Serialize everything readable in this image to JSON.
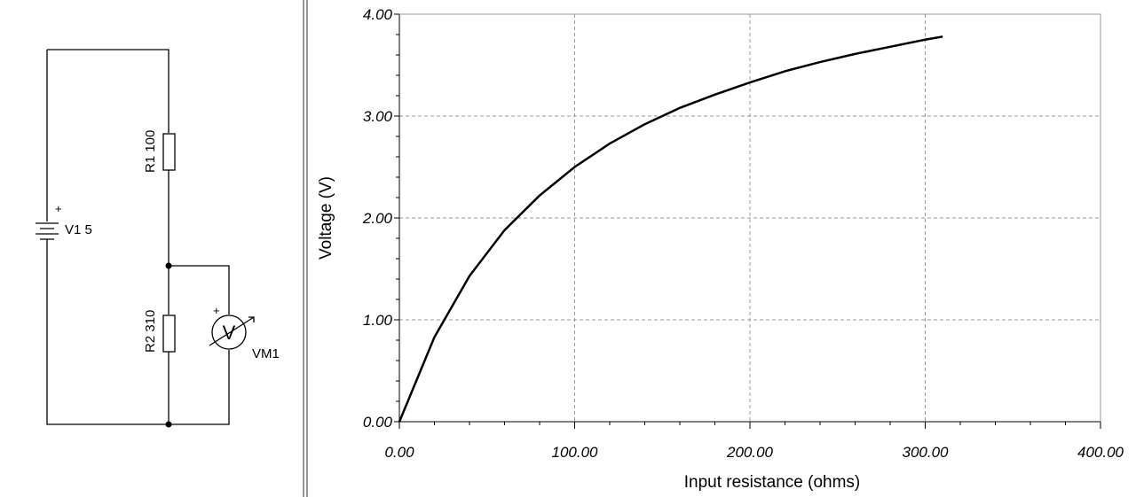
{
  "schematic": {
    "components": [
      {
        "label": "V1 5",
        "polarity": "+"
      },
      {
        "label": "R1 100"
      },
      {
        "label": "R2 310"
      },
      {
        "label": "VM1",
        "symbol": "V",
        "polarity": "+"
      }
    ]
  },
  "chart_data": {
    "type": "line",
    "x_label": "Input resistance (ohms)",
    "y_label": "Voltage (V)",
    "x": [
      0,
      20,
      40,
      60,
      80,
      100,
      120,
      140,
      160,
      180,
      200,
      220,
      240,
      260,
      280,
      300,
      310
    ],
    "series": [
      {
        "color": "#000000",
        "values": [
          0,
          0.83,
          1.43,
          1.88,
          2.22,
          2.5,
          2.73,
          2.92,
          3.08,
          3.21,
          3.33,
          3.44,
          3.53,
          3.61,
          3.68,
          3.75,
          3.78
        ]
      }
    ],
    "xlim": [
      0,
      400
    ],
    "ylim": [
      0,
      4
    ],
    "xticks": [
      {
        "value": 0,
        "label": "0.00"
      },
      {
        "value": 100,
        "label": "100.00"
      },
      {
        "value": 200,
        "label": "200.00"
      },
      {
        "value": 300,
        "label": "300.00"
      },
      {
        "value": 400,
        "label": "400.00"
      }
    ],
    "yticks": [
      {
        "value": 0,
        "label": "0.00"
      },
      {
        "value": 1,
        "label": "1.00"
      },
      {
        "value": 2,
        "label": "2.00"
      },
      {
        "value": 3,
        "label": "3.00"
      },
      {
        "value": 4,
        "label": "4.00"
      }
    ],
    "xminor": [
      20,
      40,
      60,
      80,
      120,
      140,
      160,
      180,
      220,
      240,
      260,
      280,
      320,
      340,
      360,
      380
    ],
    "yminor": [
      0.2,
      0.4,
      0.6,
      0.8,
      1.2,
      1.4,
      1.6,
      1.8,
      2.2,
      2.4,
      2.6,
      2.8,
      3.2,
      3.4,
      3.6,
      3.8
    ],
    "grid": true
  }
}
